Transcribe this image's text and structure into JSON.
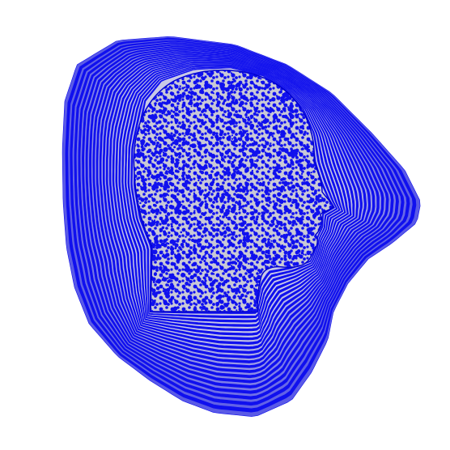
{
  "figure": {
    "palette": {
      "background": "#ffffff",
      "ink": "#1010ee",
      "ink_dark": "#0000cc",
      "fill_gray": "#c9c9d6"
    },
    "description_icons": [
      "head-silhouette-icon"
    ]
  }
}
